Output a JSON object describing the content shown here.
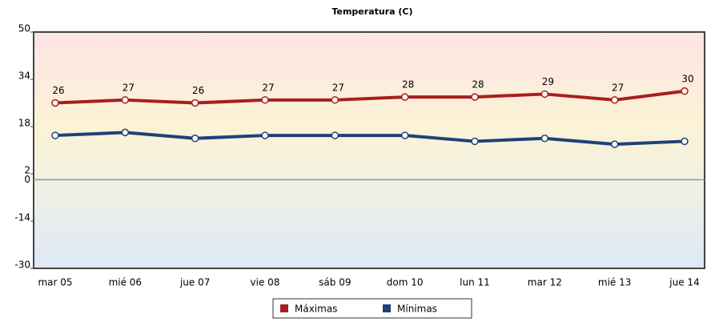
{
  "chart_data": {
    "type": "line",
    "title": "Temperatura (C)",
    "categories": [
      "mar 05",
      "mié 06",
      "jue 07",
      "vie 08",
      "sáb 09",
      "dom 10",
      "lun 11",
      "mar 12",
      "mié 13",
      "jue 14"
    ],
    "series": [
      {
        "name": "Máximas",
        "color": "#a81e1e",
        "values": [
          26,
          27,
          26,
          27,
          27,
          28,
          28,
          29,
          27,
          30
        ],
        "data_labels": true
      },
      {
        "name": "Mínimas",
        "color": "#1f4178",
        "values": [
          15,
          16,
          14,
          15,
          15,
          15,
          13,
          14,
          12,
          13
        ],
        "data_labels": false
      }
    ],
    "ylim": [
      -30,
      50
    ],
    "yticks": [
      -30,
      -14,
      2,
      18,
      34,
      50
    ],
    "baseline": 0,
    "grid": false,
    "legend": "bottom"
  }
}
